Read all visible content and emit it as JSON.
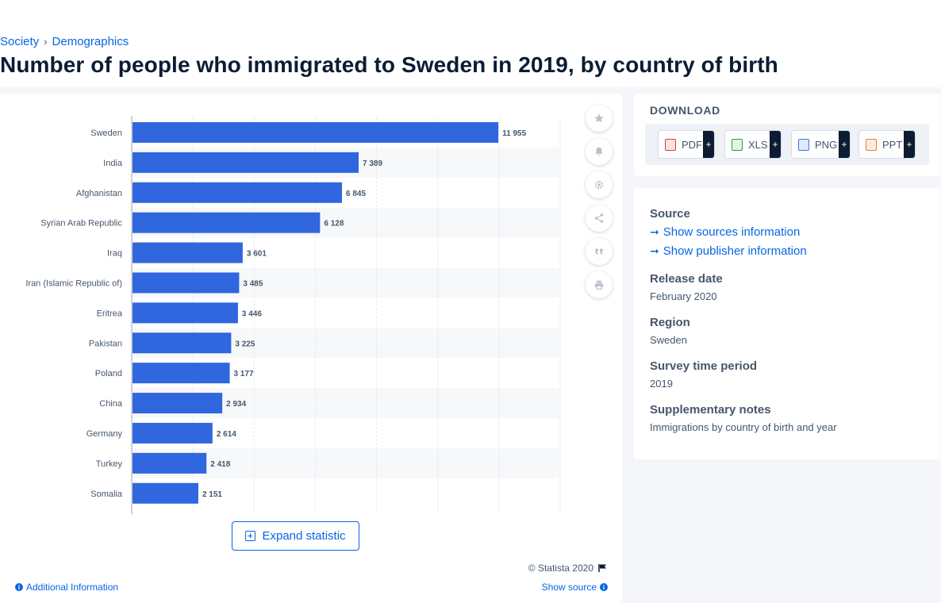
{
  "breadcrumb": [
    "Society",
    "Demographics"
  ],
  "page_title": "Number of people who immigrated to Sweden in 2019, by country of birth",
  "chart_data": {
    "type": "bar",
    "orientation": "horizontal",
    "categories": [
      "Sweden",
      "India",
      "Afghanistan",
      "Syrian Arab Republic",
      "Iraq",
      "Iran (Islamic Republic of)",
      "Eritrea",
      "Pakistan",
      "Poland",
      "China",
      "Germany",
      "Turkey",
      "Somalia"
    ],
    "values": [
      11955,
      7389,
      6845,
      6128,
      3601,
      3485,
      3446,
      3225,
      3177,
      2934,
      2614,
      2418,
      2151
    ],
    "value_labels": [
      "11 955",
      "7 389",
      "6 845",
      "6 128",
      "3 601",
      "3 485",
      "3 446",
      "3 225",
      "3 177",
      "2 934",
      "2 614",
      "2 418",
      "2 151"
    ],
    "xlim": [
      0,
      14000
    ],
    "grid": true,
    "bar_color": "#3066de",
    "title": "",
    "xlabel": "",
    "ylabel": ""
  },
  "tools": [
    {
      "icon": "star-icon"
    },
    {
      "icon": "bell-icon"
    },
    {
      "icon": "gear-icon"
    },
    {
      "icon": "share-icon"
    },
    {
      "icon": "quote-icon"
    },
    {
      "icon": "print-icon"
    }
  ],
  "expand_label": "Expand statistic",
  "copyright": "© Statista 2020",
  "additional_info": "Additional Information",
  "show_source": "Show source",
  "download": {
    "title": "DOWNLOAD",
    "buttons": [
      {
        "label": "PDF",
        "plus": "+",
        "color": "#e03a3a"
      },
      {
        "label": "XLS",
        "plus": "+",
        "color": "#2e9e45"
      },
      {
        "label": "PNG",
        "plus": "+",
        "color": "#3a7bd5"
      },
      {
        "label": "PPT",
        "plus": "+",
        "color": "#e8822d"
      }
    ]
  },
  "source_panel": {
    "source_title": "Source",
    "show_sources": "Show sources information",
    "show_publisher": "Show publisher information",
    "release_title": "Release date",
    "release_value": "February 2020",
    "region_title": "Region",
    "region_value": "Sweden",
    "survey_title": "Survey time period",
    "survey_value": "2019",
    "notes_title": "Supplementary notes",
    "notes_value": "Immigrations by country of birth and year"
  }
}
